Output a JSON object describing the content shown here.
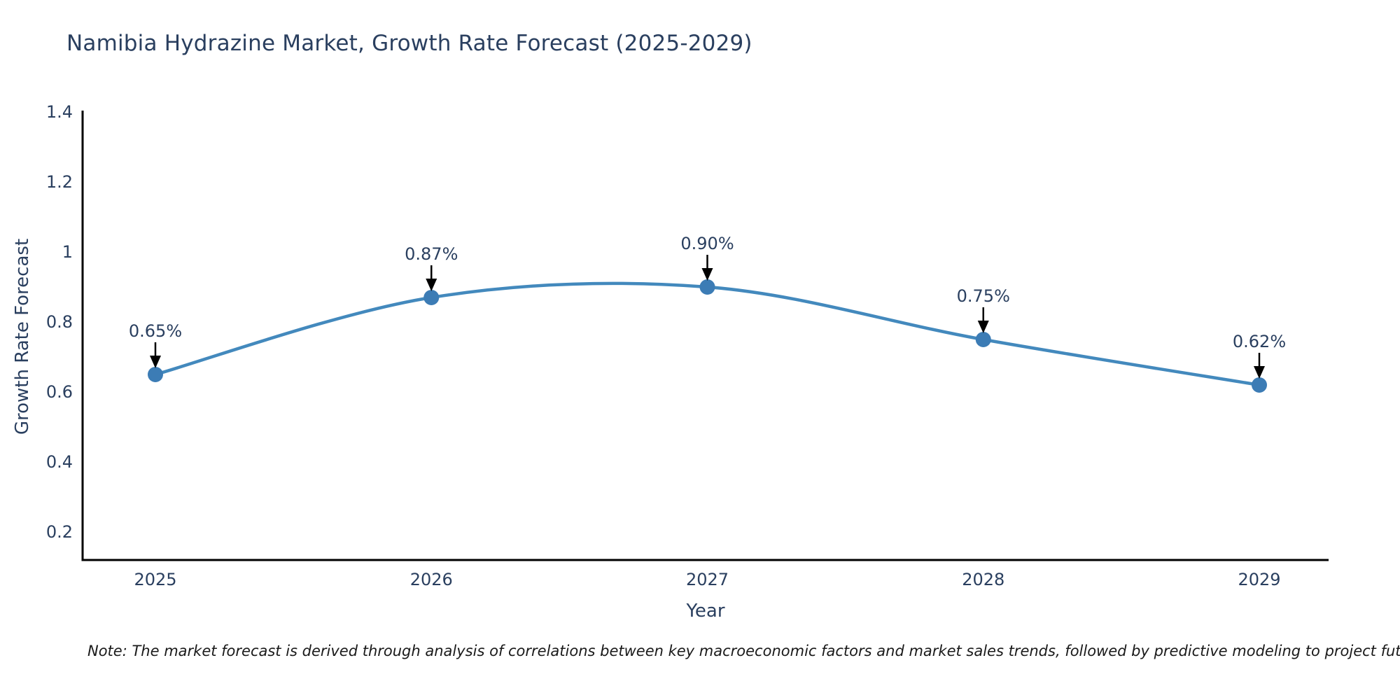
{
  "header": {
    "title": "Namibia Hydrazine Market, Growth Rate Forecast (2025-2029)"
  },
  "note": {
    "text": "Note: The market forecast is derived through analysis of correlations between key macroeconomic factors and market sales trends, followed by predictive modeling to project future sales"
  },
  "chart_data": {
    "type": "line",
    "title": "Namibia Hydrazine Market, Growth Rate Forecast (2025-2029)",
    "x": [
      "2025",
      "2026",
      "2027",
      "2028",
      "2029"
    ],
    "series": [
      {
        "name": "Growth Rate Forecast",
        "values": [
          0.65,
          0.87,
          0.9,
          0.75,
          0.62
        ]
      }
    ],
    "point_labels": [
      "0.65%",
      "0.87%",
      "0.90%",
      "0.75%",
      "0.62%"
    ],
    "xlabel": "Year",
    "ylabel": "Growth Rate Forecast",
    "ytick_labels": [
      "1.4",
      "1.2",
      "1",
      "0.8",
      "0.6",
      "0.4",
      "0.2"
    ],
    "ytick_values": [
      1.4,
      1.2,
      1.0,
      0.8,
      0.6,
      0.4,
      0.2
    ],
    "ylim": [
      0.12,
      1.404
    ],
    "line_shape": "spline",
    "grid": false,
    "legend_position": "none",
    "annotations": "each point labeled with percent value and a black arrow pointing down to the marker",
    "colors": {
      "line": "#4389bd",
      "marker": "#3c7cb5",
      "axis_line": "#000000",
      "tick_text": "#2a3f5f",
      "title_text": "#2a3f5f",
      "label_text": "#2a3f5f",
      "arrow": "#000000",
      "note_text": "#1a1a1a",
      "background": "#ffffff"
    }
  }
}
